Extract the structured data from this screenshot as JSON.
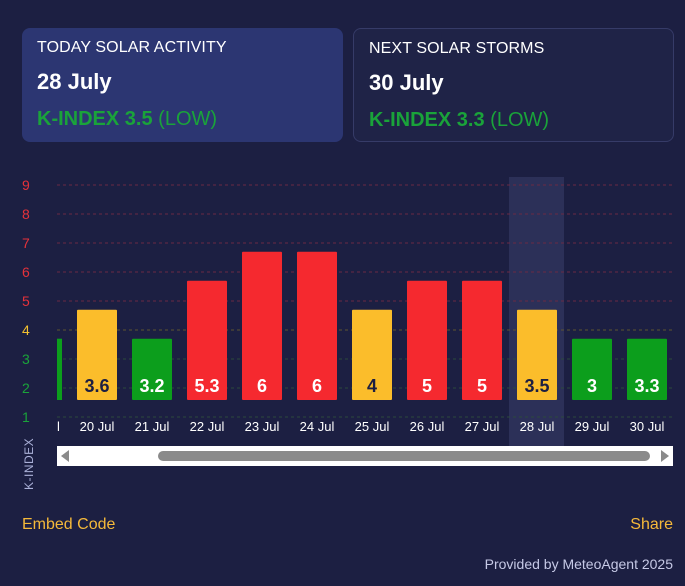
{
  "today": {
    "heading": "TODAY SOLAR ACTIVITY",
    "date": "28 July",
    "k_label": "K-INDEX 3.5",
    "k_level": "(LOW)"
  },
  "next": {
    "heading": "NEXT SOLAR STORMS",
    "date": "30 July",
    "k_label": "K-INDEX 3.3",
    "k_level": "(LOW)"
  },
  "chart_data": {
    "type": "bar",
    "ylabel": "K-INDEX",
    "ylim": [
      1,
      9
    ],
    "yticks": [
      {
        "label": "9",
        "value": 9,
        "color": "#e5323a"
      },
      {
        "label": "8",
        "value": 8,
        "color": "#e5323a"
      },
      {
        "label": "7",
        "value": 7,
        "color": "#e5323a"
      },
      {
        "label": "6",
        "value": 6,
        "color": "#e5323a"
      },
      {
        "label": "5",
        "value": 5,
        "color": "#e5323a"
      },
      {
        "label": "4",
        "value": 4,
        "color": "#f2c030"
      },
      {
        "label": "3",
        "value": 3,
        "color": "#1aa33a"
      },
      {
        "label": "2",
        "value": 2,
        "color": "#1aa33a"
      },
      {
        "label": "1",
        "value": 1,
        "color": "#1aa33a"
      }
    ],
    "partial_first_category": "l",
    "categories": [
      "20 Jul",
      "21 Jul",
      "22 Jul",
      "23 Jul",
      "24 Jul",
      "25 Jul",
      "26 Jul",
      "27 Jul",
      "28 Jul",
      "29 Jul",
      "30 Jul"
    ],
    "values": [
      3.6,
      3.2,
      5.3,
      6,
      6,
      4,
      5,
      5,
      3.5,
      3,
      3.3
    ],
    "bar_tops": [
      4.7,
      3.7,
      5.7,
      6.7,
      6.7,
      4.7,
      5.7,
      5.7,
      4.7,
      3.7,
      3.7
    ],
    "colors": [
      "#fbbd2b",
      "#0c9e1c",
      "#f5292f",
      "#f5292f",
      "#f5292f",
      "#fbbd2b",
      "#f5292f",
      "#f5292f",
      "#fbbd2b",
      "#0c9e1c",
      "#0c9e1c"
    ],
    "label_colors": [
      "#1c1f42",
      "#ffffff",
      "#ffffff",
      "#ffffff",
      "#ffffff",
      "#1c1f42",
      "#ffffff",
      "#ffffff",
      "#1c1f42",
      "#ffffff",
      "#ffffff"
    ],
    "highlight_index": 8
  },
  "embed_code": "Embed Code",
  "share": "Share",
  "provided": "Provided by MeteoAgent 2025"
}
